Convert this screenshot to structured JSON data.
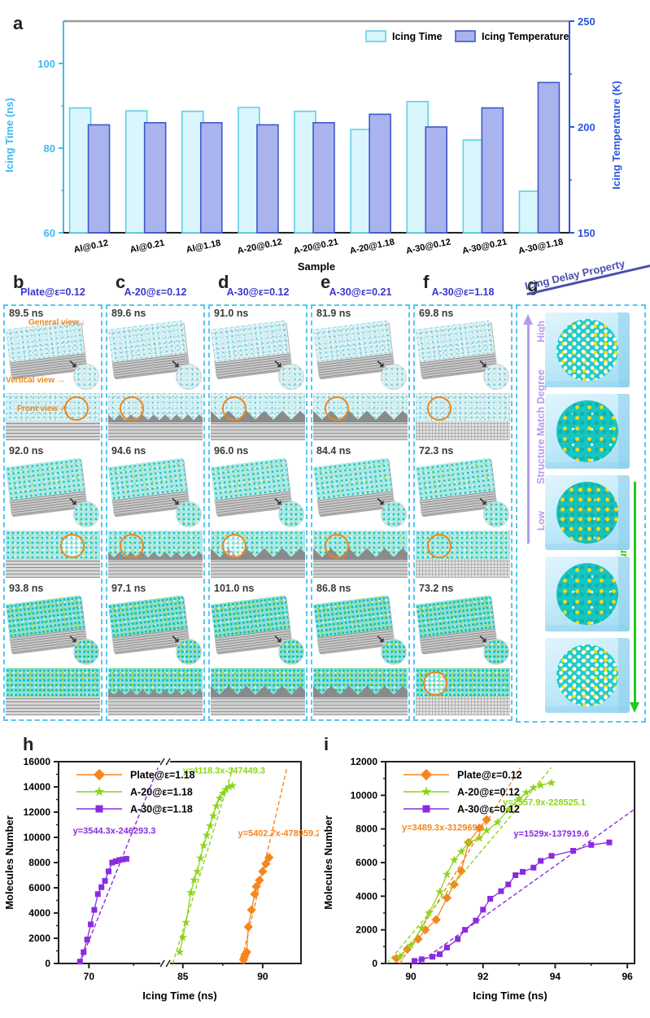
{
  "panel_labels": {
    "a": "a",
    "b": "b",
    "c": "c",
    "d": "d",
    "e": "e",
    "f": "f",
    "g": "g",
    "h": "h",
    "i": "i"
  },
  "snapshots": {
    "columns": [
      {
        "title": "Plate@ε=0.12",
        "times": [
          "89.5 ns",
          "92.0 ns",
          "93.8 ns"
        ]
      },
      {
        "title": "A-20@ε=0.12",
        "times": [
          "89.6 ns",
          "94.6 ns",
          "97.1 ns"
        ]
      },
      {
        "title": "A-30@ε=0.12",
        "times": [
          "91.0 ns",
          "96.0 ns",
          "101.0 ns"
        ]
      },
      {
        "title": "A-30@ε=0.21",
        "times": [
          "81.9 ns",
          "84.4 ns",
          "86.8 ns"
        ]
      },
      {
        "title": "A-30@ε=1.18",
        "times": [
          "69.8 ns",
          "72.3 ns",
          "73.2 ns"
        ]
      }
    ],
    "annotations": {
      "general": "General view",
      "vertical": "Vertical view",
      "front": "Front view"
    }
  },
  "panel_g": {
    "arrow_top": "Icing Delay Property",
    "axis_left": {
      "label": "Structure Match Degree",
      "top": "High",
      "bottom": "Low"
    },
    "axis_right": {
      "label": "Surface Energy",
      "top": "Low",
      "bottom": "High"
    }
  },
  "colors": {
    "icing_time_fill": "#D8F6FB",
    "icing_time_stroke": "#62CFE8",
    "icing_temp_fill": "#A9B4EF",
    "icing_temp_stroke": "#4058CB",
    "left_axis": "#41B9F1",
    "right_axis": "#2B55E0",
    "orange": "#F5861F",
    "green": "#8CD41A",
    "purple": "#8A2BE2",
    "panel_title_blue": "#3C35CE",
    "annotation_orange": "#F08519",
    "g_arrow": "#4D4FAE",
    "g_purple": "#B49BEE",
    "g_green": "#1FCB1F"
  },
  "chart_data": [
    {
      "id": "a",
      "type": "bar",
      "categories": [
        "Al@0.12",
        "Al@0.21",
        "Al@1.18",
        "A-20@0.12",
        "A-20@0.21",
        "A-20@1.18",
        "A-30@0.12",
        "A-30@0.21",
        "A-30@1.18"
      ],
      "series": [
        {
          "name": "Icing Time",
          "axis": "left",
          "values": [
            89.5,
            88.8,
            88.7,
            89.6,
            88.7,
            84.4,
            91.0,
            81.9,
            69.8
          ],
          "fill": "#D8F6FB",
          "stroke": "#62CFE8"
        },
        {
          "name": "Icing Temperature",
          "axis": "right",
          "values": [
            201,
            202,
            202,
            201,
            202,
            206,
            200,
            209,
            221
          ],
          "fill": "#A9B4EF",
          "stroke": "#4058CB"
        }
      ],
      "left_axis": {
        "label": "Icing Time (ns)",
        "range": [
          60,
          110
        ],
        "ticks": [
          60,
          80,
          100
        ],
        "minor": [
          70,
          90
        ],
        "color": "#41B9F1"
      },
      "right_axis": {
        "label": "Icing Temperature (K)",
        "range": [
          150,
          250
        ],
        "ticks": [
          150,
          200,
          250
        ],
        "minor": [
          175,
          225
        ],
        "color": "#2B55E0"
      },
      "xlabel": "Sample",
      "legend": [
        "Icing Time",
        "Icing Temperature"
      ],
      "legend_position": "top-right",
      "grid": false
    },
    {
      "id": "h",
      "type": "scatter",
      "title": "",
      "xlabel": "Icing Time (ns)",
      "ylabel": "Molecules Number",
      "ylim": [
        0,
        16000
      ],
      "ystep": 2000,
      "x_break": true,
      "segments": [
        {
          "dom": [
            68.3,
            74.0
          ],
          "frac": [
            0.0,
            0.42
          ]
        },
        {
          "dom": [
            84.2,
            92.4
          ],
          "frac": [
            0.46,
            1.0
          ]
        }
      ],
      "xticks": [
        70,
        85,
        90
      ],
      "xticks_minor": [
        72.5,
        87.5
      ],
      "legend_position": "top-left",
      "series": [
        {
          "name": "Plate@ε=1.18",
          "color": "#F5861F",
          "marker": "diamond",
          "x": [
            88.8,
            88.85,
            88.9,
            89.0,
            89.1,
            89.3,
            89.5,
            89.6,
            89.8,
            90.0,
            90.2,
            90.4
          ],
          "y": [
            300,
            500,
            700,
            900,
            2900,
            4250,
            5500,
            6100,
            6600,
            7300,
            7900,
            8400
          ],
          "fit": {
            "slope": 5402.7,
            "intercept": -478959.2
          },
          "eq": "y=5402.7x-478959.2",
          "eq_pos": [
            88.45,
            10100
          ]
        },
        {
          "name": "A-20@ε=1.18",
          "color": "#8CD41A",
          "marker": "star",
          "x": [
            84.8,
            85.0,
            85.2,
            85.5,
            85.7,
            85.9,
            86.1,
            86.3,
            86.5,
            86.7,
            86.9,
            87.1,
            87.3,
            87.5,
            87.7,
            87.9,
            88.1
          ],
          "y": [
            900,
            2050,
            3250,
            5600,
            6600,
            7300,
            8350,
            9350,
            10150,
            10900,
            11700,
            12500,
            13100,
            13500,
            13800,
            14000,
            14100
          ],
          "fit": {
            "slope": 4118.3,
            "intercept": -347449.3
          },
          "eq": "y=4118.3x-347449.3",
          "eq_pos": [
            85.0,
            15050
          ]
        },
        {
          "name": "A-30@ε=1.18",
          "color": "#8A2BE2",
          "marker": "square",
          "x": [
            69.5,
            69.7,
            69.9,
            70.1,
            70.3,
            70.5,
            70.7,
            70.9,
            71.1,
            71.3,
            71.5,
            71.7,
            71.9,
            72.1
          ],
          "y": [
            150,
            900,
            1900,
            3100,
            4250,
            5500,
            6050,
            6550,
            7300,
            8000,
            8100,
            8200,
            8250,
            8300
          ],
          "fit": {
            "slope": 3544.3,
            "intercept": -246293.3
          },
          "eq": "y=3544.3x-246293.3",
          "eq_pos": [
            69.1,
            10300
          ]
        }
      ]
    },
    {
      "id": "i",
      "type": "scatter",
      "title": "",
      "xlabel": "Icing Time (ns)",
      "ylabel": "Molecules Number",
      "ylim": [
        0,
        12000
      ],
      "ystep": 2000,
      "x_break": false,
      "xlim": [
        89.3,
        96.2
      ],
      "xticks": [
        90,
        92,
        94,
        96
      ],
      "xticks_minor": [
        91,
        93,
        95
      ],
      "legend_position": "top-left",
      "series": [
        {
          "name": "Plate@ε=0.12",
          "color": "#F5861F",
          "marker": "diamond",
          "x": [
            89.6,
            89.9,
            90.2,
            90.4,
            90.7,
            91.0,
            91.2,
            91.4,
            91.6,
            91.9,
            92.1
          ],
          "y": [
            300,
            850,
            1450,
            2000,
            2600,
            3900,
            4700,
            5500,
            7200,
            8050,
            8550
          ],
          "fit": {
            "slope": 3489.3,
            "intercept": -312969.1
          },
          "eq": "y=3489.3x-312969.1",
          "eq_pos": [
            89.75,
            7900
          ]
        },
        {
          "name": "A-20@ε=0.12",
          "color": "#8CD41A",
          "marker": "star",
          "x": [
            89.7,
            90.0,
            90.3,
            90.5,
            90.8,
            91.0,
            91.2,
            91.4,
            91.6,
            91.9,
            92.1,
            92.4,
            92.7,
            93.0,
            93.2,
            93.4,
            93.6,
            93.9
          ],
          "y": [
            400,
            1100,
            2100,
            3000,
            4250,
            5300,
            6150,
            6650,
            7200,
            7450,
            7900,
            8400,
            9150,
            9800,
            10150,
            10450,
            10600,
            10750
          ],
          "fit": {
            "slope": 2557.9,
            "intercept": -228525.1
          },
          "eq": "y=2557.9x-228525.1",
          "eq_pos": [
            92.55,
            9400
          ]
        },
        {
          "name": "A-30@ε=0.12",
          "color": "#8A2BE2",
          "marker": "square",
          "x": [
            90.1,
            90.3,
            90.6,
            90.8,
            91.0,
            91.3,
            91.5,
            91.8,
            92.0,
            92.2,
            92.5,
            92.7,
            92.9,
            93.1,
            93.4,
            93.6,
            93.9,
            94.5,
            95.0,
            95.5
          ],
          "y": [
            150,
            250,
            400,
            550,
            950,
            1450,
            2000,
            2550,
            3200,
            3850,
            4300,
            4700,
            5250,
            5450,
            5700,
            6100,
            6400,
            6700,
            7050,
            7200
          ],
          "fit": {
            "slope": 1529,
            "intercept": -137919.6
          },
          "eq": "y=1529x-137919.6",
          "eq_pos": [
            92.85,
            7550
          ]
        }
      ]
    }
  ]
}
